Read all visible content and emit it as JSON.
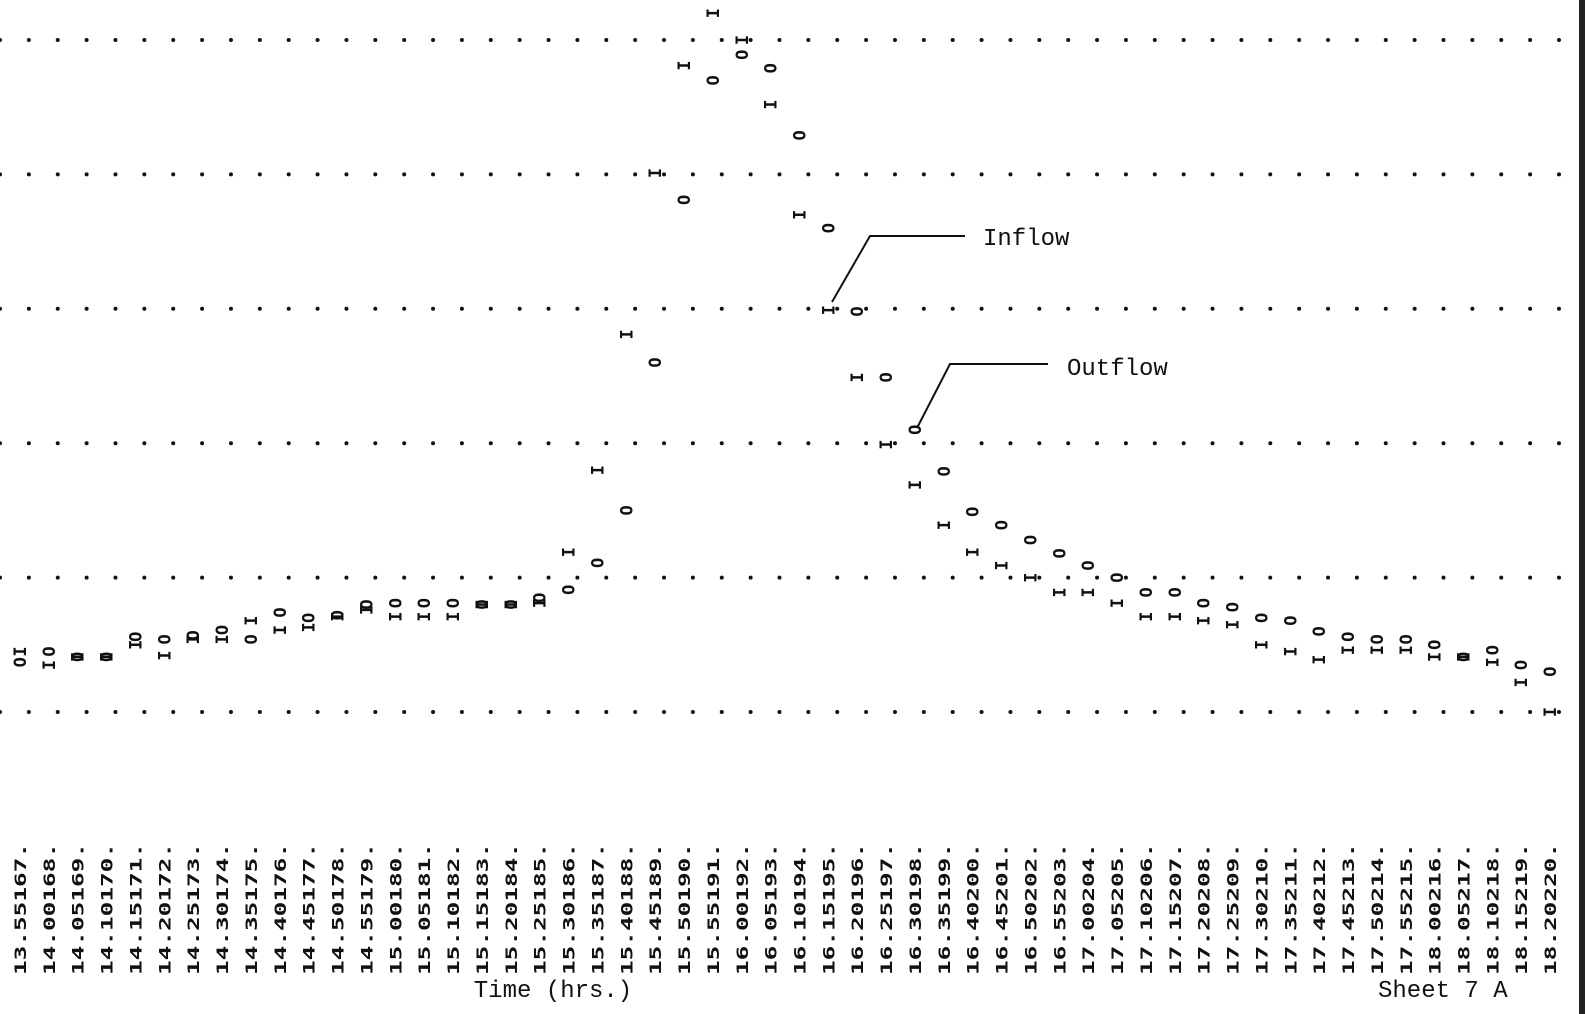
{
  "chart_data": {
    "type": "printer-plot",
    "xlabel": "Time (hrs.)",
    "footer": "Sheet 7 A",
    "categories": [
      "13.55167.",
      "14.00168.",
      "14.05169.",
      "14.10170.",
      "14.15171.",
      "14.20172.",
      "14.25173.",
      "14.30174.",
      "14.35175.",
      "14.40176.",
      "14.45177.",
      "14.50178.",
      "14.55179.",
      "15.00180.",
      "15.05181.",
      "15.10182.",
      "15.15183.",
      "15.20184.",
      "15.25185.",
      "15.30186.",
      "15.35187.",
      "15.40188.",
      "15.45189.",
      "15.50190.",
      "15.55191.",
      "16.00192.",
      "16.05193.",
      "16.10194.",
      "16.15195.",
      "16.20196.",
      "16.25197.",
      "16.30198.",
      "16.35199.",
      "16.40200.",
      "16.45201.",
      "16.50202.",
      "16.55203.",
      "17.00204.",
      "17.05205.",
      "17.10206.",
      "17.15207.",
      "17.20208.",
      "17.25209.",
      "17.30210.",
      "17.35211.",
      "17.40212.",
      "17.45213.",
      "17.50214.",
      "17.55215.",
      "18.00216.",
      "18.05217.",
      "18.10218.",
      "18.15219.",
      "18.20220."
    ],
    "series": [
      {
        "name": "Inflow",
        "symbol": "I",
        "color": "#111111",
        "values": [
          0.45,
          0.35,
          0.41,
          0.41,
          0.5,
          0.42,
          0.54,
          0.54,
          0.68,
          0.61,
          0.63,
          0.71,
          0.76,
          0.71,
          0.71,
          0.71,
          0.8,
          0.8,
          0.81,
          1.19,
          1.8,
          2.81,
          4.01,
          4.81,
          5.2,
          5.0,
          4.52,
          3.7,
          2.99,
          2.49,
          1.99,
          1.69,
          1.39,
          1.19,
          1.09,
          1.0,
          0.89,
          0.89,
          0.81,
          0.71,
          0.71,
          0.68,
          0.65,
          0.5,
          0.45,
          0.39,
          0.46,
          0.46,
          0.46,
          0.41,
          0.41,
          0.37,
          0.22,
          0
        ]
      },
      {
        "name": "Outflow",
        "symbol": "O",
        "color": "#111111",
        "values": [
          0.37,
          0.45,
          0.41,
          0.41,
          0.56,
          0.54,
          0.57,
          0.61,
          0.54,
          0.74,
          0.7,
          0.72,
          0.8,
          0.81,
          0.81,
          0.81,
          0.8,
          0.8,
          0.85,
          0.91,
          1.11,
          1.5,
          2.6,
          3.81,
          4.7,
          4.89,
          4.79,
          4.29,
          3.6,
          2.98,
          2.49,
          2.1,
          1.79,
          1.49,
          1.39,
          1.28,
          1.18,
          1.09,
          1.0,
          0.89,
          0.89,
          0.81,
          0.78,
          0.7,
          0.68,
          0.6,
          0.56,
          0.54,
          0.54,
          0.5,
          0.41,
          0.46,
          0.35,
          0.3
        ]
      }
    ],
    "ylim": [
      0,
      5
    ],
    "yticks": [
      0,
      1,
      2,
      3,
      4,
      5
    ],
    "grid": true
  }
}
